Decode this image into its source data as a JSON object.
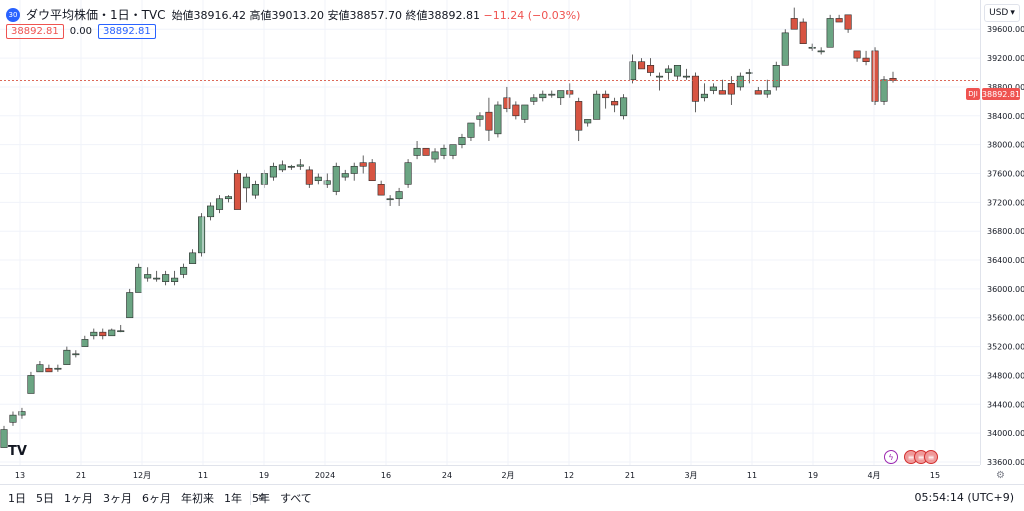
{
  "legend": {
    "logo_text": "30",
    "title": "ダウ平均株価・1日・TVC",
    "ohlc": "始値38916.42 高値39013.20 安値38857.70 終値38892.81",
    "change": "−11.24 (−0.03%)"
  },
  "badges": {
    "sell": "38892.81",
    "spread": "0.00",
    "buy": "38892.81"
  },
  "currency": "USD",
  "current_price": {
    "symbol": "DJI",
    "value": "38892.81"
  },
  "bottom_bar": {
    "ranges": [
      "1日",
      "5日",
      "1ヶ月",
      "3ヶ月",
      "6ヶ月",
      "年初来",
      "1年",
      "5年",
      "すべて"
    ],
    "calendar_icon": "calendar-icon",
    "clock": "05:54:14 (UTC+9)"
  },
  "colors": {
    "up": "#6ba583",
    "down": "#d75442",
    "grid": "#f0f3fa",
    "accent": "#2962ff"
  },
  "chart_data": {
    "type": "candlestick",
    "y_ticks": [
      "39600.00",
      "39200.00",
      "38800.00",
      "38400.00",
      "38000.00",
      "37600.00",
      "37200.00",
      "36800.00",
      "36400.00",
      "36000.00",
      "35600.00",
      "35200.00",
      "34800.00",
      "34400.00",
      "34000.00",
      "33600.00"
    ],
    "x_ticks": [
      "13",
      "21",
      "12月",
      "11",
      "19",
      "2024",
      "16",
      "24",
      "2月",
      "12",
      "21",
      "3月",
      "11",
      "19",
      "4月",
      "15"
    ],
    "ylim": [
      33600,
      39950
    ],
    "candles": [
      [
        33800,
        34100,
        33800,
        34050
      ],
      [
        34150,
        34300,
        34100,
        34250
      ],
      [
        34250,
        34350,
        34200,
        34300
      ],
      [
        34550,
        34850,
        34550,
        34800
      ],
      [
        34850,
        35000,
        34850,
        34950
      ],
      [
        34900,
        34950,
        34850,
        34850
      ],
      [
        34900,
        34950,
        34850,
        34900
      ],
      [
        34950,
        35200,
        34950,
        35150
      ],
      [
        35100,
        35150,
        35050,
        35100
      ],
      [
        35200,
        35350,
        35200,
        35300
      ],
      [
        35350,
        35450,
        35300,
        35400
      ],
      [
        35400,
        35450,
        35300,
        35350
      ],
      [
        35350,
        35450,
        35350,
        35430
      ],
      [
        35420,
        35500,
        35400,
        35420
      ],
      [
        35600,
        36000,
        35600,
        35950
      ],
      [
        35950,
        36350,
        35950,
        36300
      ],
      [
        36150,
        36300,
        36100,
        36200
      ],
      [
        36150,
        36250,
        36100,
        36150
      ],
      [
        36100,
        36250,
        36050,
        36200
      ],
      [
        36100,
        36250,
        36050,
        36150
      ],
      [
        36200,
        36350,
        36150,
        36300
      ],
      [
        36350,
        36550,
        36350,
        36500
      ],
      [
        36500,
        37050,
        36450,
        37000
      ],
      [
        37000,
        37200,
        36950,
        37150
      ],
      [
        37100,
        37300,
        37050,
        37250
      ],
      [
        37250,
        37300,
        37200,
        37280
      ],
      [
        37600,
        37650,
        37100,
        37100
      ],
      [
        37400,
        37600,
        37200,
        37550
      ],
      [
        37300,
        37500,
        37250,
        37450
      ],
      [
        37450,
        37650,
        37400,
        37600
      ],
      [
        37550,
        37750,
        37500,
        37700
      ],
      [
        37650,
        37780,
        37620,
        37720
      ],
      [
        37700,
        37720,
        37650,
        37700
      ],
      [
        37700,
        37800,
        37650,
        37720
      ],
      [
        37650,
        37700,
        37400,
        37450
      ],
      [
        37500,
        37600,
        37450,
        37550
      ],
      [
        37450,
        37600,
        37400,
        37500
      ],
      [
        37350,
        37750,
        37300,
        37700
      ],
      [
        37550,
        37650,
        37500,
        37600
      ],
      [
        37600,
        37750,
        37500,
        37700
      ],
      [
        37750,
        37850,
        37600,
        37700
      ],
      [
        37750,
        37800,
        37500,
        37500
      ],
      [
        37450,
        37500,
        37300,
        37300
      ],
      [
        37250,
        37300,
        37150,
        37250
      ],
      [
        37250,
        37400,
        37150,
        37350
      ],
      [
        37450,
        37800,
        37400,
        37750
      ],
      [
        37850,
        38050,
        37800,
        37950
      ],
      [
        37950,
        37950,
        37850,
        37850
      ],
      [
        37800,
        37950,
        37750,
        37900
      ],
      [
        37850,
        38000,
        37800,
        37950
      ],
      [
        37850,
        38000,
        37800,
        38000
      ],
      [
        38000,
        38150,
        37950,
        38100
      ],
      [
        38100,
        38300,
        38050,
        38300
      ],
      [
        38350,
        38450,
        38250,
        38400
      ],
      [
        38450,
        38650,
        38050,
        38200
      ],
      [
        38150,
        38600,
        38100,
        38550
      ],
      [
        38650,
        38800,
        38450,
        38500
      ],
      [
        38550,
        38600,
        38350,
        38400
      ],
      [
        38350,
        38550,
        38300,
        38550
      ],
      [
        38600,
        38700,
        38550,
        38650
      ],
      [
        38650,
        38750,
        38600,
        38700
      ],
      [
        38700,
        38750,
        38650,
        38700
      ],
      [
        38650,
        38750,
        38550,
        38750
      ],
      [
        38750,
        38850,
        38650,
        38700
      ],
      [
        38600,
        38650,
        38050,
        38200
      ],
      [
        38300,
        38350,
        38250,
        38350
      ],
      [
        38350,
        38750,
        38350,
        38700
      ],
      [
        38700,
        38750,
        38500,
        38650
      ],
      [
        38600,
        38650,
        38450,
        38550
      ],
      [
        38400,
        38700,
        38350,
        38650
      ],
      [
        38900,
        39250,
        38850,
        39150
      ],
      [
        39150,
        39200,
        39050,
        39050
      ],
      [
        39100,
        39200,
        38950,
        39000
      ],
      [
        38950,
        39000,
        38750,
        38950
      ],
      [
        39000,
        39100,
        38900,
        39050
      ],
      [
        38950,
        39100,
        38900,
        39100
      ],
      [
        38950,
        39050,
        38900,
        38950
      ],
      [
        38950,
        39000,
        38450,
        38600
      ],
      [
        38650,
        38850,
        38600,
        38700
      ],
      [
        38750,
        38850,
        38700,
        38800
      ],
      [
        38750,
        38900,
        38700,
        38700
      ],
      [
        38850,
        38950,
        38550,
        38700
      ],
      [
        38800,
        39000,
        38750,
        38950
      ],
      [
        39000,
        39050,
        38850,
        39000
      ],
      [
        38750,
        38800,
        38700,
        38700
      ],
      [
        38700,
        38900,
        38650,
        38750
      ],
      [
        38800,
        39150,
        38750,
        39100
      ],
      [
        39100,
        39600,
        39100,
        39550
      ],
      [
        39750,
        39900,
        39650,
        39600
      ],
      [
        39700,
        39750,
        39400,
        39400
      ],
      [
        39350,
        39400,
        39300,
        39350
      ],
      [
        39300,
        39350,
        39250,
        39300
      ],
      [
        39350,
        39800,
        39350,
        39750
      ],
      [
        39750,
        39800,
        39700,
        39700
      ],
      [
        39800,
        39800,
        39550,
        39600
      ],
      [
        39300,
        39300,
        39150,
        39200
      ],
      [
        39200,
        39300,
        39100,
        39150
      ],
      [
        39300,
        39350,
        38550,
        38600
      ],
      [
        38600,
        38950,
        38550,
        38900
      ],
      [
        38920,
        39010,
        38860,
        38890
      ]
    ]
  }
}
